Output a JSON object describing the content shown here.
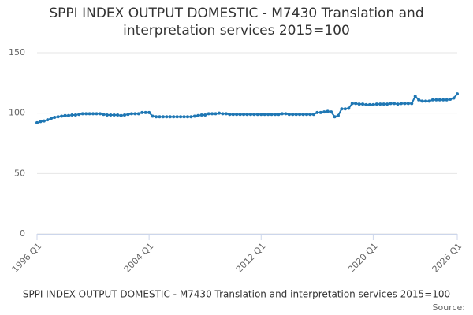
{
  "chart_data": {
    "type": "line",
    "title": [
      "SPPI INDEX OUTPUT DOMESTIC - M7430 Translation and",
      "interpretation services 2015=100"
    ],
    "categories": [
      "1996 Q1",
      null,
      null,
      null,
      null,
      null,
      null,
      null,
      null,
      null,
      null,
      null,
      null,
      null,
      null,
      null,
      null,
      null,
      null,
      null,
      null,
      null,
      null,
      null,
      null,
      null,
      null,
      null,
      null,
      null,
      null,
      null,
      "2004 Q1",
      null,
      null,
      null,
      null,
      null,
      null,
      null,
      null,
      null,
      null,
      null,
      null,
      null,
      null,
      null,
      null,
      null,
      null,
      null,
      null,
      null,
      null,
      null,
      null,
      null,
      null,
      null,
      null,
      null,
      null,
      null,
      "2012 Q1",
      null,
      null,
      null,
      null,
      null,
      null,
      null,
      null,
      null,
      null,
      null,
      null,
      null,
      null,
      null,
      null,
      null,
      null,
      null,
      null,
      null,
      null,
      null,
      null,
      null,
      null,
      null,
      null,
      null,
      null,
      null,
      "2020 Q1",
      null,
      null,
      null,
      null,
      null,
      null,
      null,
      null,
      null,
      null,
      null,
      null,
      null,
      null,
      null,
      null,
      null,
      null,
      null,
      null,
      null,
      null,
      null,
      "2026 Q1"
    ],
    "series": [
      {
        "name": "SPPI INDEX OUTPUT DOMESTIC - M7430 Translation and interpretation services 2015=100",
        "color": "#1f77b4",
        "values": [
          92,
          93,
          93.5,
          94.5,
          95.5,
          96.5,
          97,
          97.5,
          98,
          98,
          98.5,
          98.5,
          99,
          99.5,
          99.5,
          99.5,
          99.5,
          99.5,
          99.5,
          99,
          98.5,
          98.5,
          98.5,
          98.5,
          98,
          98.5,
          99,
          99.5,
          99.5,
          99.5,
          100.5,
          100.5,
          100.5,
          97.5,
          97,
          97,
          97,
          97,
          97,
          97,
          97,
          97,
          97,
          97,
          97,
          97.5,
          98,
          98.5,
          98.5,
          99.5,
          99.5,
          99.5,
          100,
          99.5,
          99.5,
          99,
          99,
          99,
          99,
          99,
          99,
          99,
          99,
          99,
          99,
          99,
          99,
          99,
          99,
          99,
          99.5,
          99.5,
          99,
          99,
          99,
          99,
          99,
          99,
          99,
          99,
          100.5,
          100.5,
          101,
          101.5,
          101,
          97,
          98,
          103.5,
          103.5,
          104,
          108,
          108,
          107.5,
          107.5,
          107,
          107,
          107,
          107.5,
          107.5,
          107.5,
          107.5,
          108,
          108,
          107.5,
          108,
          108,
          108,
          108,
          114,
          111,
          110,
          110,
          110,
          111,
          111,
          111,
          111,
          111,
          111.5,
          112.5,
          116
        ]
      }
    ],
    "ylim": [
      0,
      150
    ],
    "yticks": [
      0,
      50,
      100,
      150
    ],
    "grid": true,
    "source": "Source:"
  }
}
